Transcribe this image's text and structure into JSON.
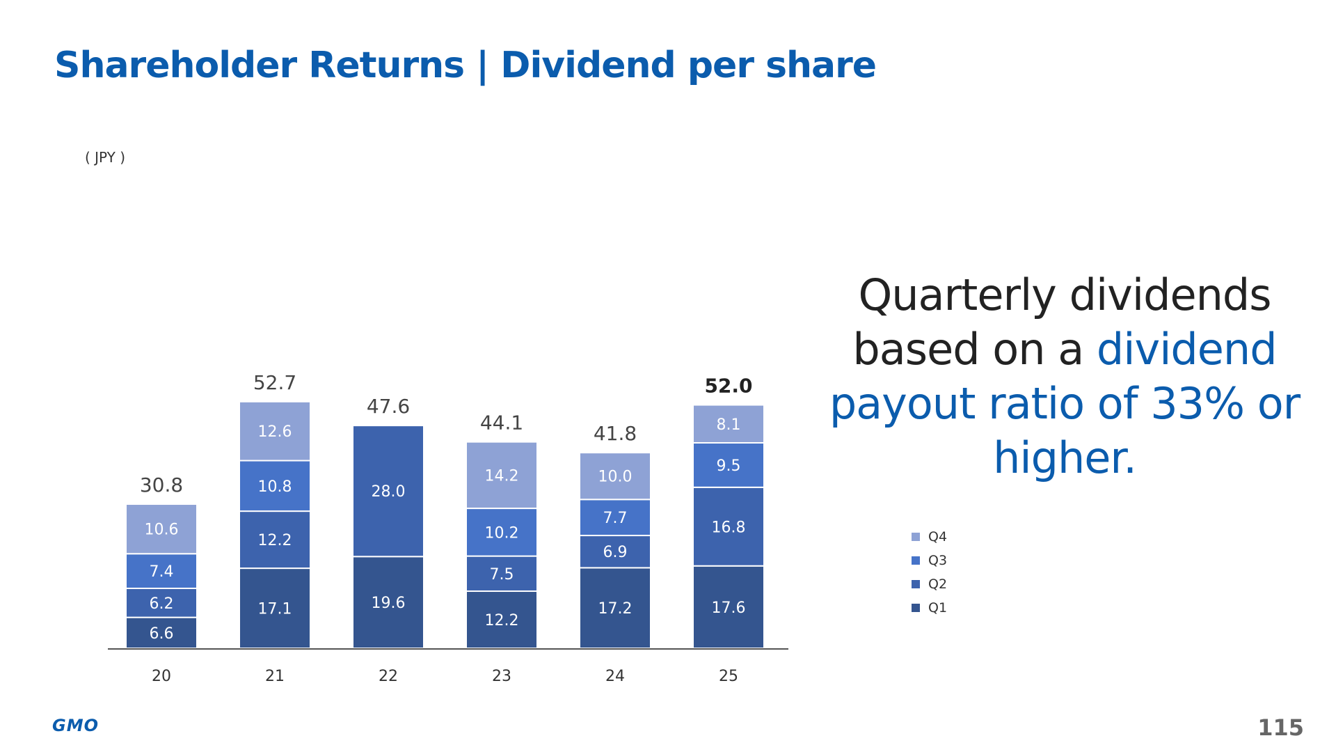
{
  "page": {
    "title": "Shareholder Returns | Dividend per share",
    "page_number": "115",
    "logo_text": "GMO"
  },
  "message": {
    "line_plain": "Quarterly dividends based on a ",
    "line_accent": "dividend payout ratio of 33% or higher."
  },
  "colors": {
    "title": "#0b5cad",
    "Q1": "#34558f",
    "Q2": "#3d63ad",
    "Q3": "#4673c8",
    "Q4": "#8ea2d5"
  },
  "chart_data": {
    "type": "bar",
    "stacked": true,
    "unit_label": "( JPY )",
    "categories": [
      "20",
      "21",
      "22",
      "23",
      "24",
      "25"
    ],
    "series": [
      {
        "name": "Q1",
        "values": [
          6.6,
          17.1,
          19.6,
          12.2,
          17.2,
          17.6
        ]
      },
      {
        "name": "Q2",
        "values": [
          6.2,
          12.2,
          28.0,
          7.5,
          6.9,
          16.8
        ]
      },
      {
        "name": "Q3",
        "values": [
          7.4,
          10.8,
          null,
          10.2,
          7.7,
          9.5
        ]
      },
      {
        "name": "Q4",
        "values": [
          10.6,
          12.6,
          null,
          14.2,
          10.0,
          8.1
        ]
      }
    ],
    "totals": [
      "30.8",
      "52.7",
      "47.6",
      "44.1",
      "41.8",
      "52.0"
    ],
    "highlight_total_index": 5,
    "legend": [
      "Q4",
      "Q3",
      "Q2",
      "Q1"
    ],
    "legend_position": "right",
    "ylim": [
      0,
      60
    ],
    "grid": false
  }
}
